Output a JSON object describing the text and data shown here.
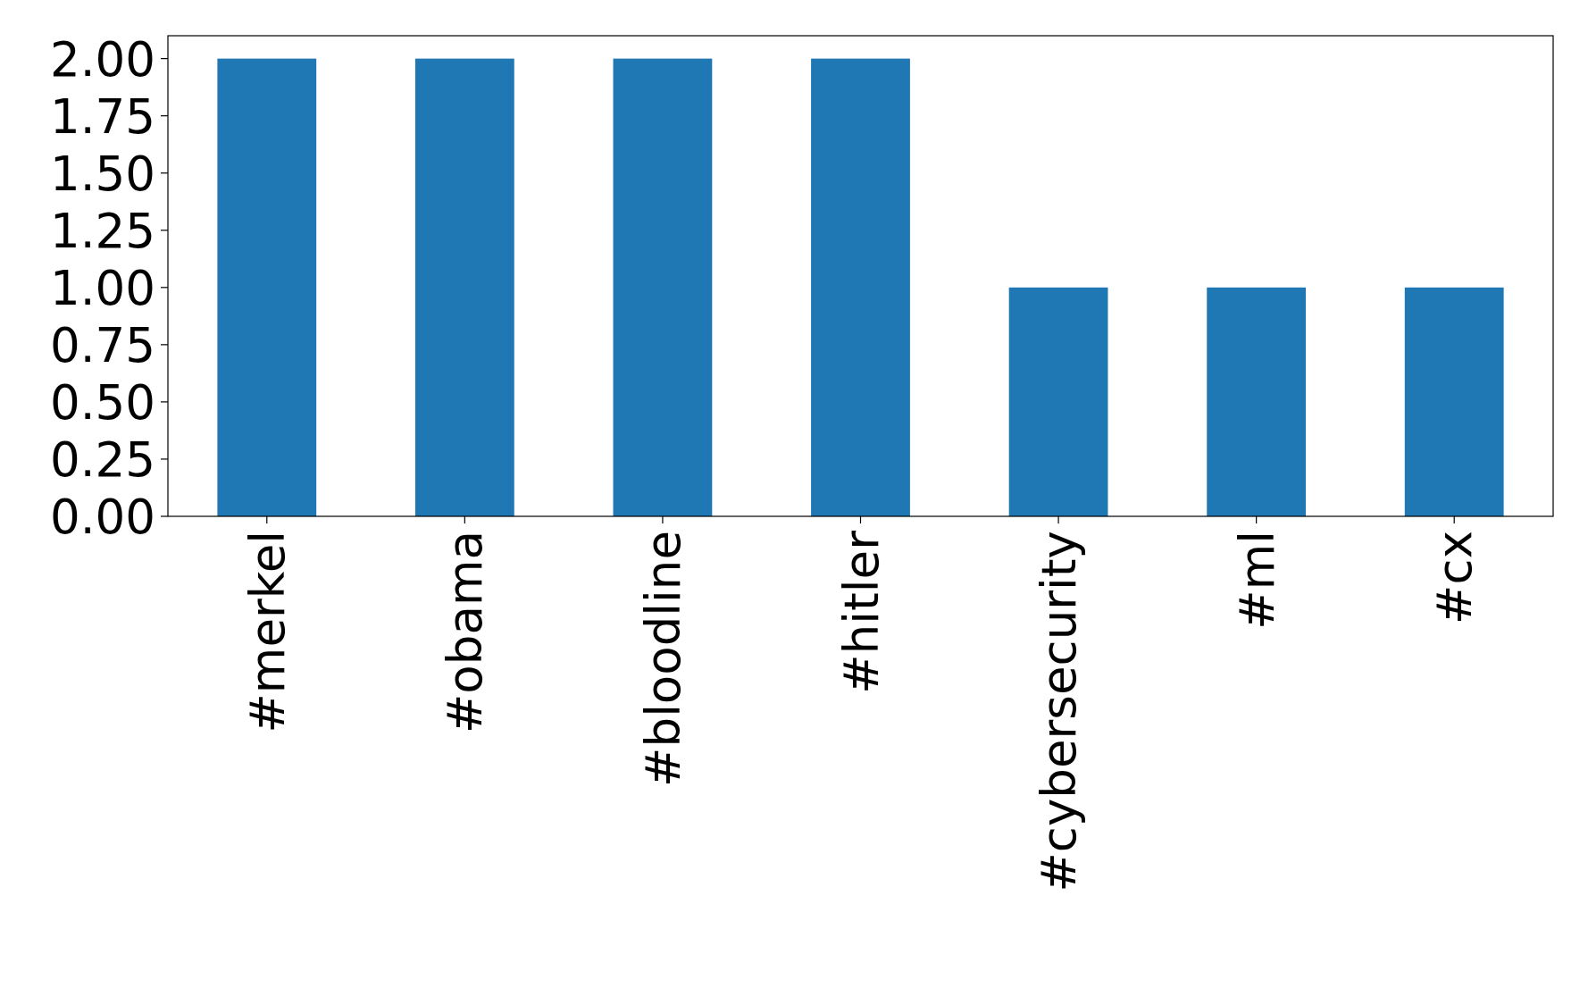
{
  "chart_data": {
    "type": "bar",
    "categories": [
      "#merkel",
      "#obama",
      "#bloodline",
      "#hitler",
      "#cybersecurity",
      "#ml",
      "#cx"
    ],
    "values": [
      2,
      2,
      2,
      2,
      1,
      1,
      1
    ],
    "color": "#1f77b4",
    "ylim": [
      0,
      2.1
    ],
    "yticks": [
      {
        "value": 0,
        "label": "0.00"
      },
      {
        "value": 0.25,
        "label": "0.25"
      },
      {
        "value": 0.5,
        "label": "0.50"
      },
      {
        "value": 0.75,
        "label": "0.75"
      },
      {
        "value": 1,
        "label": "1.00"
      },
      {
        "value": 1.25,
        "label": "1.25"
      },
      {
        "value": 1.5,
        "label": "1.50"
      },
      {
        "value": 1.75,
        "label": "1.75"
      },
      {
        "value": 2,
        "label": "2.00"
      }
    ],
    "grid": false
  }
}
